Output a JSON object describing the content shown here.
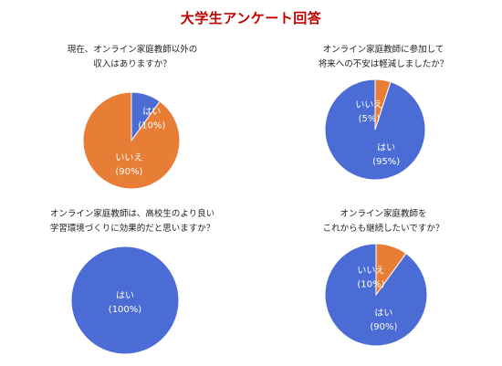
{
  "page": {
    "title": "大学生アンケート回答"
  },
  "colors": {
    "yes": "#4a6cd4",
    "no": "#e87e35",
    "stroke": "#ffffff"
  },
  "questions": [
    {
      "line1": "現在、オンライン家庭教師以外の",
      "line2": "収入はありますか？"
    },
    {
      "line1": "オンライン家庭教師に参加して",
      "line2": "将来への不安は軽減しましたか？"
    },
    {
      "line1": "オンライン家庭教師は、高校生のより良い",
      "line2": "学習環境づくりに効果的だと思いますか？"
    },
    {
      "line1": "オンライン家庭教師を",
      "line2": "これからも継続したいですか？"
    }
  ],
  "chart_data": [
    {
      "type": "pie",
      "title": "現在、オンライン家庭教師以外の収入はありますか？",
      "slices": [
        {
          "label": "はい",
          "value": 10,
          "display": "(10%)"
        },
        {
          "label": "いいえ",
          "value": 90,
          "display": "(90%)"
        }
      ]
    },
    {
      "type": "pie",
      "title": "オンライン家庭教師に参加して将来への不安は軽減しましたか？",
      "slices": [
        {
          "label": "はい",
          "value": 95,
          "display": "(95%)"
        },
        {
          "label": "いいえ",
          "value": 5,
          "display": "(5%)"
        }
      ]
    },
    {
      "type": "pie",
      "title": "オンライン家庭教師は、高校生のより良い学習環境づくりに効果的だと思いますか？",
      "slices": [
        {
          "label": "はい",
          "value": 100,
          "display": "(100%)"
        }
      ]
    },
    {
      "type": "pie",
      "title": "オンライン家庭教師をこれからも継続したいですか？",
      "slices": [
        {
          "label": "はい",
          "value": 90,
          "display": "(90%)"
        },
        {
          "label": "いいえ",
          "value": 10,
          "display": "(10%)"
        }
      ]
    }
  ]
}
